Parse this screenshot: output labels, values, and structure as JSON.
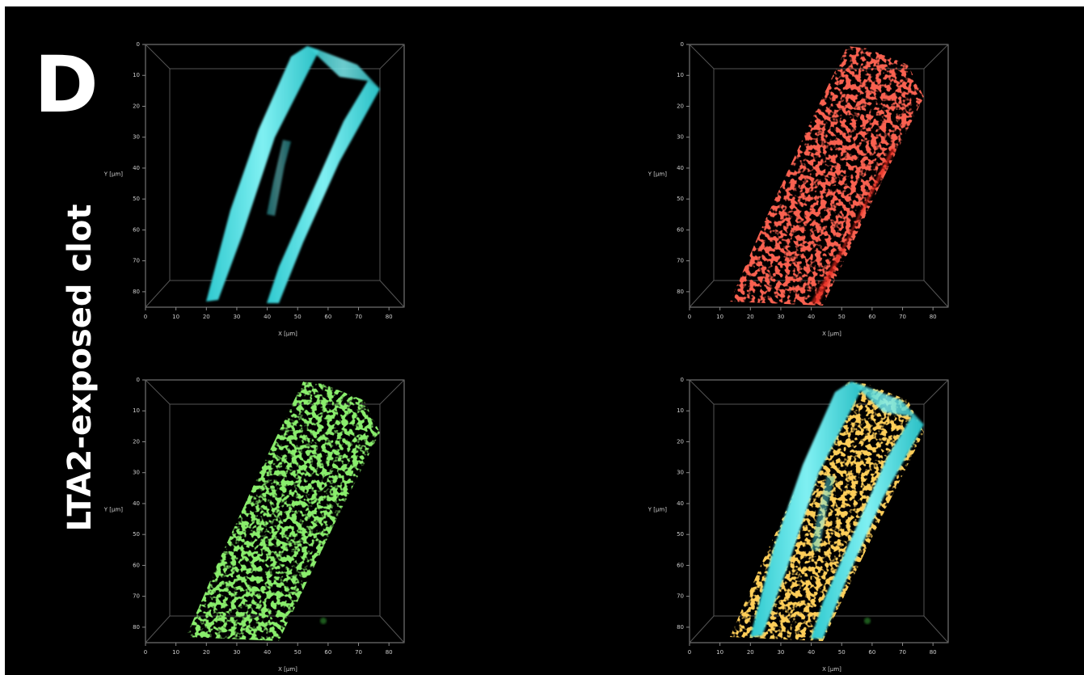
{
  "figure": {
    "panel_label": "D",
    "row_label": "LTA2-exposed clot",
    "panels": [
      {
        "x_label": "X [µm]",
        "y_label": "Y [µm]",
        "xlim": [
          0,
          85
        ],
        "ylim": [
          0,
          85
        ],
        "xticks": [
          0,
          10,
          20,
          30,
          40,
          50,
          60,
          70,
          80
        ],
        "yticks": [
          0,
          10,
          20,
          30,
          40,
          50,
          60,
          70,
          80
        ]
      },
      {
        "x_label": "X [µm]",
        "y_label": "Y [µm]",
        "xlim": [
          0,
          85
        ],
        "ylim": [
          0,
          85
        ],
        "xticks": [
          0,
          10,
          20,
          30,
          40,
          50,
          60,
          70,
          80
        ],
        "yticks": [
          0,
          10,
          20,
          30,
          40,
          50,
          60,
          70,
          80
        ]
      },
      {
        "x_label": "X [µm]",
        "y_label": "Y [µm]",
        "xlim": [
          0,
          85
        ],
        "ylim": [
          0,
          85
        ],
        "xticks": [
          0,
          10,
          20,
          30,
          40,
          50,
          60,
          70,
          80
        ],
        "yticks": [
          0,
          10,
          20,
          30,
          40,
          50,
          60,
          70,
          80
        ]
      },
      {
        "x_label": "X [µm]",
        "y_label": "Y [µm]",
        "xlim": [
          0,
          85
        ],
        "ylim": [
          0,
          85
        ],
        "xticks": [
          0,
          10,
          20,
          30,
          40,
          50,
          60,
          70,
          80
        ],
        "yticks": [
          0,
          10,
          20,
          30,
          40,
          50,
          60,
          70,
          80
        ]
      }
    ]
  }
}
